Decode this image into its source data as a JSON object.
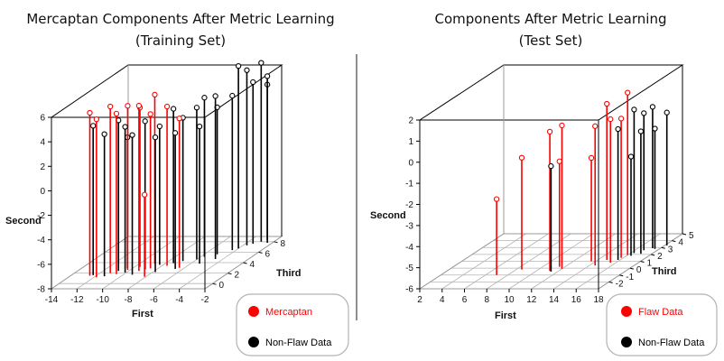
{
  "chart_data": [
    {
      "type": "scatter",
      "subtype": "3d-scatter-with-drop-lines",
      "title": "Mercaptan Components After Metric Learning",
      "subtitle": "(Training Set)",
      "xlabel": "First",
      "ylabel": "Third",
      "zlabel": "Second",
      "x_ticks": [
        "-14",
        "-12",
        "-10",
        "-8",
        "-6",
        "-4",
        "-2"
      ],
      "y_ticks": [
        "0",
        "2",
        "4",
        "6",
        "8"
      ],
      "z_ticks": [
        "-8",
        "-6",
        "-4",
        "-2",
        "0",
        "2",
        "4",
        "6"
      ],
      "xlim": [
        -14,
        -2
      ],
      "ylim": [
        -1,
        9
      ],
      "zlim": [
        -8,
        6
      ],
      "grid": "floor",
      "legend": [
        {
          "label": "Mercaptan",
          "color": "#ff0000"
        },
        {
          "label": "Non-Flaw Data",
          "color": "#000000"
        }
      ],
      "series": [
        {
          "name": "Mercaptan",
          "color": "#ff0000",
          "points": [
            [
              -12.5,
              1.5,
              5.3
            ],
            [
              -11.8,
              1.2,
              4.9
            ],
            [
              -11.2,
              2.0,
              5.6
            ],
            [
              -10.6,
              1.8,
              5.1
            ],
            [
              -10.2,
              2.6,
              5.4
            ],
            [
              -9.6,
              3.2,
              5.0
            ],
            [
              -9.2,
              2.4,
              5.5
            ],
            [
              -8.8,
              3.8,
              5.8
            ],
            [
              -8.6,
              2.9,
              4.6
            ],
            [
              -8.1,
              1.3,
              -1.3
            ],
            [
              -7.6,
              3.4,
              5.0
            ],
            [
              -6.4,
              3.0,
              4.2
            ]
          ]
        },
        {
          "name": "Non-Flaw Data",
          "color": "#000000",
          "points": [
            [
              -12.3,
              1.6,
              4.2
            ],
            [
              -11.3,
              1.4,
              3.6
            ],
            [
              -10.8,
              2.4,
              4.3
            ],
            [
              -10.1,
              2.1,
              3.9
            ],
            [
              -10.4,
              2.9,
              2.7
            ],
            [
              -9.3,
              1.7,
              3.4
            ],
            [
              -8.9,
              2.7,
              4.1
            ],
            [
              -8.3,
              3.6,
              3.3
            ],
            [
              -7.8,
              2.2,
              3.0
            ],
            [
              -7.4,
              3.9,
              4.6
            ],
            [
              -6.9,
              4.3,
              3.7
            ],
            [
              -6.6,
              2.8,
              3.1
            ],
            [
              -6.0,
              4.6,
              4.4
            ],
            [
              -5.7,
              5.1,
              5.0
            ],
            [
              -5.3,
              3.8,
              3.2
            ],
            [
              -5.0,
              5.6,
              4.0
            ],
            [
              -4.6,
              4.7,
              5.3
            ],
            [
              -4.3,
              6.4,
              4.6
            ],
            [
              -4.0,
              6.7,
              6.9
            ],
            [
              -3.7,
              7.3,
              6.3
            ],
            [
              -3.4,
              7.6,
              5.2
            ],
            [
              -3.0,
              8.0,
              6.6
            ],
            [
              -2.7,
              8.3,
              4.7
            ],
            [
              -2.4,
              7.8,
              5.6
            ]
          ]
        }
      ]
    },
    {
      "type": "scatter",
      "subtype": "3d-scatter-with-drop-lines",
      "title": "Components After  Metric Learning",
      "subtitle": "(Test Set)",
      "xlabel": "First",
      "ylabel": "Third",
      "zlabel": "Second",
      "x_ticks": [
        "2",
        "4",
        "6",
        "8",
        "10",
        "12",
        "14",
        "16",
        "18"
      ],
      "y_ticks": [
        "-2",
        "-1",
        "0",
        "1",
        "2",
        "3",
        "4",
        "5"
      ],
      "z_ticks": [
        "-6",
        "-5",
        "-4",
        "-3",
        "-2",
        "-1",
        "0",
        "1",
        "2"
      ],
      "xlim": [
        2,
        18
      ],
      "ylim": [
        -3,
        5
      ],
      "zlim": [
        -6,
        2
      ],
      "grid": "floor",
      "legend": [
        {
          "label": "Flaw Data",
          "color": "#ff0000"
        },
        {
          "label": "Non-Flaw Data",
          "color": "#000000"
        }
      ],
      "series": [
        {
          "name": "Flaw Data",
          "color": "#ff0000",
          "points": [
            [
              7.0,
              -1.0,
              -2.4
            ],
            [
              8.5,
              -0.2,
              -0.7
            ],
            [
              11.2,
              -0.4,
              0.6
            ],
            [
              12.0,
              -0.1,
              0.8
            ],
            [
              11.5,
              0.2,
              -1.0
            ],
            [
              14.5,
              0.4,
              0.6
            ],
            [
              14.8,
              1.2,
              1.4
            ],
            [
              15.5,
              0.8,
              0.8
            ],
            [
              15.8,
              1.5,
              0.6
            ],
            [
              13.6,
              1.0,
              -1.1
            ],
            [
              16.0,
              1.9,
              1.7
            ]
          ]
        },
        {
          "name": "Non-Flaw Data",
          "color": "#000000",
          "points": [
            [
              11.4,
              -0.5,
              -1.0
            ],
            [
              15.8,
              1.2,
              0.2
            ],
            [
              16.3,
              2.2,
              0.8
            ],
            [
              16.8,
              2.6,
              0.5
            ],
            [
              17.3,
              2.9,
              0.7
            ],
            [
              16.4,
              1.8,
              -1.3
            ],
            [
              17.6,
              2.8,
              -0.3
            ],
            [
              18.2,
              3.3,
              0.3
            ],
            [
              17.0,
              2.1,
              -0.2
            ]
          ]
        }
      ]
    }
  ]
}
